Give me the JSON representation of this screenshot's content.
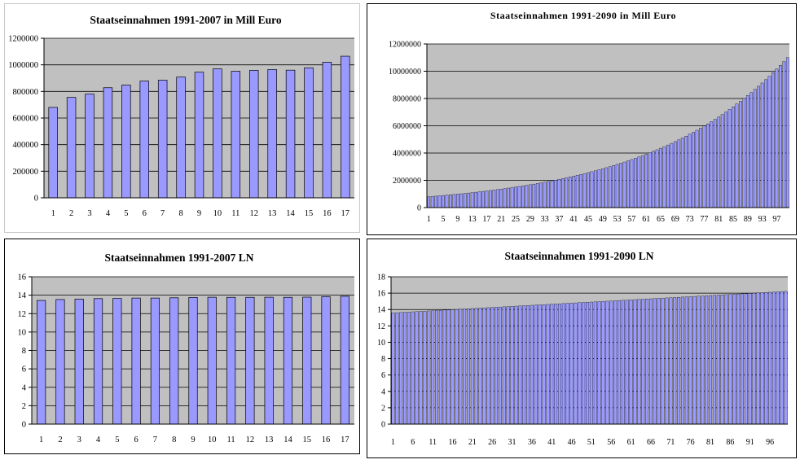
{
  "chart_data": [
    {
      "id": "revenue_1991_2007",
      "type": "bar",
      "title": "Staatseinnahmen 1991-2007 in Mill Euro",
      "xlabel": "",
      "ylabel": "",
      "ylim": [
        0,
        1200000
      ],
      "yticks": [
        "0",
        "200000",
        "400000",
        "600000",
        "800000",
        "1000000",
        "1200000"
      ],
      "grid": true,
      "categories": [
        "1",
        "2",
        "3",
        "4",
        "5",
        "6",
        "7",
        "8",
        "9",
        "10",
        "11",
        "12",
        "13",
        "14",
        "15",
        "16",
        "17"
      ],
      "values": [
        680000,
        755000,
        780000,
        828000,
        848000,
        878000,
        885000,
        908000,
        945000,
        970000,
        952000,
        958000,
        965000,
        960000,
        978000,
        1020000,
        1065000
      ],
      "colors": {
        "bar": "#9999ff",
        "plot_bg": "#c0c0c0"
      }
    },
    {
      "id": "revenue_1991_2090",
      "type": "bar",
      "title": "Staatseinnahmen 1991-2090 in Mill Euro",
      "xlabel": "",
      "ylabel": "",
      "ylim": [
        0,
        12000000
      ],
      "yticks": [
        "0",
        "2000000",
        "4000000",
        "6000000",
        "8000000",
        "10000000",
        "12000000"
      ],
      "grid": true,
      "x_tick_labels": [
        "1",
        "5",
        "9",
        "13",
        "17",
        "21",
        "25",
        "29",
        "33",
        "37",
        "41",
        "45",
        "49",
        "53",
        "57",
        "61",
        "65",
        "69",
        "73",
        "77",
        "81",
        "85",
        "89",
        "93",
        "97"
      ],
      "x_tick_step": 4,
      "n_bars": 100,
      "value_model": {
        "start_value": 800000,
        "end_value": 11000000,
        "note": "values read from bar heights; smooth growth curve"
      },
      "colors": {
        "bar": "#9999ff",
        "plot_bg": "#c0c0c0"
      }
    },
    {
      "id": "ln_1991_2007",
      "type": "bar",
      "title": "Staatseinnahmen 1991-2007 LN",
      "xlabel": "",
      "ylabel": "",
      "ylim": [
        0,
        16
      ],
      "yticks": [
        "0",
        "2",
        "4",
        "6",
        "8",
        "10",
        "12",
        "14",
        "16"
      ],
      "grid": true,
      "categories": [
        "1",
        "2",
        "3",
        "4",
        "5",
        "6",
        "7",
        "8",
        "9",
        "10",
        "11",
        "12",
        "13",
        "14",
        "15",
        "16",
        "17"
      ],
      "values": [
        13.43,
        13.53,
        13.57,
        13.63,
        13.65,
        13.69,
        13.69,
        13.72,
        13.76,
        13.78,
        13.77,
        13.77,
        13.78,
        13.77,
        13.79,
        13.84,
        13.88
      ],
      "colors": {
        "bar": "#9999ff",
        "plot_bg": "#c0c0c0"
      }
    },
    {
      "id": "ln_1991_2090",
      "type": "bar",
      "title": "Staatseinnahmen 1991-2090 LN",
      "xlabel": "",
      "ylabel": "",
      "ylim": [
        0,
        18
      ],
      "yticks": [
        "0",
        "2",
        "4",
        "6",
        "8",
        "10",
        "12",
        "14",
        "16",
        "18"
      ],
      "grid": true,
      "x_tick_labels": [
        "1",
        "6",
        "11",
        "16",
        "21",
        "26",
        "31",
        "36",
        "41",
        "46",
        "51",
        "56",
        "61",
        "66",
        "71",
        "76",
        "81",
        "86",
        "91",
        "96"
      ],
      "x_tick_step": 5,
      "n_bars": 100,
      "value_model": {
        "start_value": 13.4,
        "end_value": 16.2,
        "note": "natural log of the 1991-2090 series"
      },
      "colors": {
        "bar": "#9999ff",
        "plot_bg": "#c0c0c0"
      }
    }
  ]
}
